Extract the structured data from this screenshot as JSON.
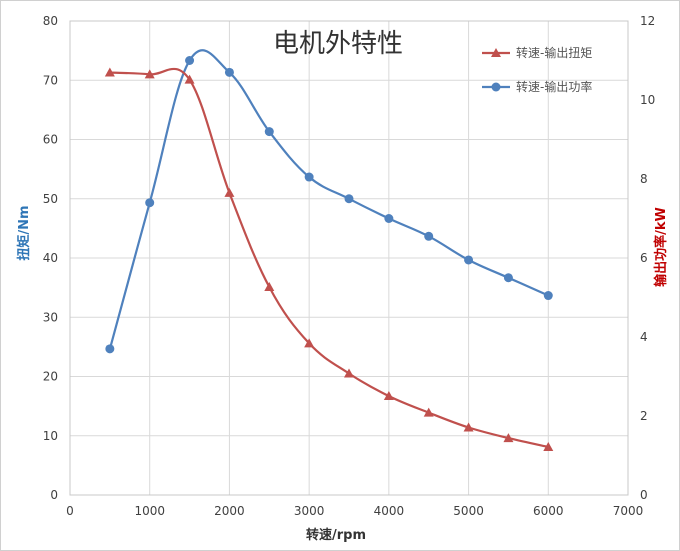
{
  "chart_data": {
    "type": "line",
    "title": "电机外特性",
    "xlabel": "转速/rpm",
    "ylabel_left": "扭矩/Nm",
    "ylabel_right": "输出功率/kW",
    "xlim": [
      0,
      7000
    ],
    "ylim_left": [
      0,
      80
    ],
    "ylim_right": [
      0,
      12
    ],
    "x_ticks": [
      0,
      1000,
      2000,
      3000,
      4000,
      5000,
      6000,
      7000
    ],
    "y_ticks_left": [
      0,
      10,
      20,
      30,
      40,
      50,
      60,
      70,
      80
    ],
    "y_ticks_right": [
      0,
      2,
      4,
      6,
      8,
      10,
      12
    ],
    "grid": "vertical-and-horizontal",
    "legend_position": "top-right",
    "series": [
      {
        "name": "转速-输出扭矩",
        "axis": "left",
        "color": "#c0504d",
        "marker": "triangle",
        "x": [
          500,
          1000,
          1500,
          2000,
          2500,
          3000,
          3500,
          4000,
          4500,
          5000,
          5500,
          6000
        ],
        "values": [
          71.3,
          71,
          70.1,
          51,
          35.1,
          25.6,
          20.5,
          16.7,
          13.9,
          11.4,
          9.6,
          8.1
        ]
      },
      {
        "name": "转速-输出功率",
        "axis": "right",
        "color": "#4f81bd",
        "marker": "circle",
        "x": [
          500,
          1000,
          1500,
          2000,
          2500,
          3000,
          3500,
          4000,
          4500,
          5000,
          5500,
          6000
        ],
        "values": [
          3.7,
          7.4,
          11.0,
          10.7,
          9.2,
          8.05,
          7.5,
          7.0,
          6.55,
          5.95,
          5.5,
          5.05
        ]
      }
    ]
  }
}
